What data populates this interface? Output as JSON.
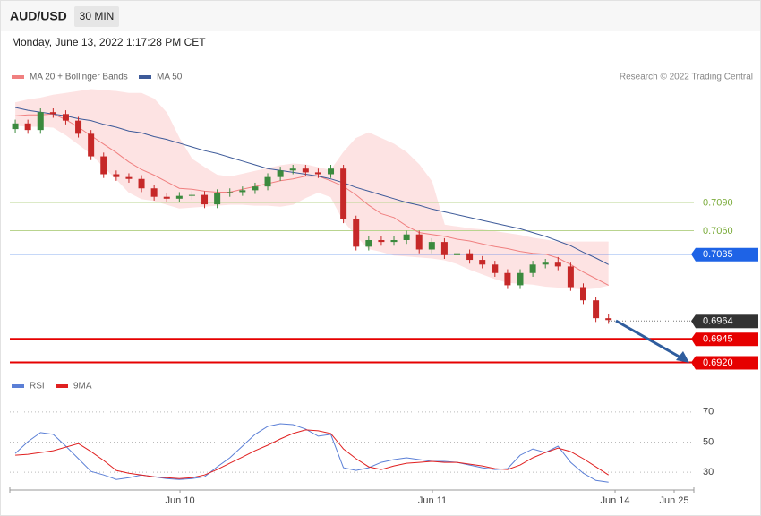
{
  "header": {
    "symbol": "AUD/USD",
    "interval": "30 MIN",
    "timestamp": "Monday, June 13, 2022 1:17:28 PM CET"
  },
  "credit": "Research © 2022 Trading Central",
  "chart_data": [
    {
      "type": "candlestick",
      "xlim": [
        -0.43,
        53.76
      ],
      "ylim": [
        0.691,
        0.721
      ],
      "up_color": "#3b8a3e",
      "down_color": "#c62828",
      "candles": {
        "open": [
          0.7168,
          0.7174,
          0.7167,
          0.7186,
          0.7184,
          0.7177,
          0.7163,
          0.7139,
          0.712,
          0.7117,
          0.7115,
          0.7105,
          0.7096,
          0.7094,
          0.7097,
          0.7098,
          0.7088,
          0.71,
          0.7101,
          0.7103,
          0.7107,
          0.7117,
          0.7124,
          0.7126,
          0.7122,
          0.712,
          0.7126,
          0.7072,
          0.7043,
          0.705,
          0.7048,
          0.705,
          0.7056,
          0.704,
          0.7048,
          0.7034,
          0.7036,
          0.7029,
          0.7024,
          0.7015,
          0.7002,
          0.7015,
          0.7024,
          0.7026,
          0.7022,
          0.7,
          0.6986,
          0.6967
        ],
        "high": [
          0.7178,
          0.7178,
          0.719,
          0.719,
          0.7188,
          0.7181,
          0.7167,
          0.7143,
          0.7124,
          0.7121,
          0.7119,
          0.7109,
          0.71,
          0.7101,
          0.7102,
          0.7102,
          0.7104,
          0.7105,
          0.7107,
          0.7111,
          0.7121,
          0.7128,
          0.713,
          0.713,
          0.7126,
          0.713,
          0.713,
          0.7076,
          0.7054,
          0.7054,
          0.7054,
          0.706,
          0.706,
          0.7052,
          0.7052,
          0.7053,
          0.704,
          0.7033,
          0.7028,
          0.7019,
          0.7019,
          0.7028,
          0.703,
          0.7032,
          0.7026,
          0.7004,
          0.699,
          0.6971
        ],
        "low": [
          0.7164,
          0.7163,
          0.7163,
          0.718,
          0.7173,
          0.7159,
          0.7135,
          0.7116,
          0.7113,
          0.7111,
          0.7101,
          0.7092,
          0.709,
          0.709,
          0.7093,
          0.7084,
          0.7084,
          0.7096,
          0.7097,
          0.7099,
          0.7103,
          0.7113,
          0.712,
          0.7118,
          0.7116,
          0.7116,
          0.7068,
          0.7039,
          0.7039,
          0.7044,
          0.7044,
          0.7046,
          0.7036,
          0.7036,
          0.703,
          0.703,
          0.7025,
          0.702,
          0.7011,
          0.6998,
          0.6998,
          0.7011,
          0.702,
          0.7018,
          0.6996,
          0.6982,
          0.6963,
          0.6961
        ],
        "close": [
          0.7174,
          0.7167,
          0.7186,
          0.7184,
          0.7177,
          0.7163,
          0.7139,
          0.712,
          0.7117,
          0.7115,
          0.7105,
          0.7096,
          0.7094,
          0.7097,
          0.7098,
          0.7088,
          0.71,
          0.7101,
          0.7103,
          0.7107,
          0.7117,
          0.7124,
          0.7126,
          0.7122,
          0.712,
          0.7126,
          0.7072,
          0.7043,
          0.705,
          0.7048,
          0.705,
          0.7056,
          0.704,
          0.7048,
          0.7034,
          0.7036,
          0.7029,
          0.7024,
          0.7015,
          0.7002,
          0.7015,
          0.7024,
          0.7026,
          0.7022,
          0.7,
          0.6986,
          0.6967,
          0.6965
        ]
      },
      "bands": {
        "color": "#fde3e3",
        "upper": [
          0.7196,
          0.7199,
          0.7201,
          0.7204,
          0.7206,
          0.7208,
          0.721,
          0.7209,
          0.7208,
          0.7206,
          0.7206,
          0.72,
          0.7185,
          0.7158,
          0.7136,
          0.7127,
          0.7119,
          0.7117,
          0.712,
          0.7123,
          0.7126,
          0.7129,
          0.7131,
          0.713,
          0.7127,
          0.7124,
          0.7143,
          0.7158,
          0.7164,
          0.7158,
          0.7152,
          0.7143,
          0.713,
          0.7112,
          0.7066,
          0.7064,
          0.7062,
          0.7061,
          0.7059,
          0.7057,
          0.7055,
          0.7052,
          0.705,
          0.7048,
          0.7048,
          0.7048,
          0.7048,
          0.7048
        ],
        "lower": [
          0.7172,
          0.7171,
          0.7171,
          0.717,
          0.7162,
          0.7152,
          0.7142,
          0.7128,
          0.7115,
          0.7101,
          0.7094,
          0.7092,
          0.7088,
          0.7084,
          0.7085,
          0.7086,
          0.7087,
          0.7088,
          0.7088,
          0.7087,
          0.7087,
          0.7086,
          0.7088,
          0.7095,
          0.7101,
          0.7096,
          0.7071,
          0.7055,
          0.7041,
          0.7038,
          0.7034,
          0.7033,
          0.7032,
          0.7031,
          0.7029,
          0.7025,
          0.7019,
          0.7014,
          0.7009,
          0.7005,
          0.7004,
          0.7003,
          0.7001,
          0.7,
          0.6999,
          0.6998,
          0.6999,
          0.7002
        ]
      },
      "series": [
        {
          "name": "MA 20 + Bollinger Bands",
          "color": "#f08080",
          "values": [
            0.7182,
            0.7183,
            0.7183,
            0.7184,
            0.7178,
            0.717,
            0.7161,
            0.7152,
            0.7143,
            0.7133,
            0.7125,
            0.7119,
            0.7112,
            0.7105,
            0.7104,
            0.7102,
            0.7101,
            0.7101,
            0.7104,
            0.7107,
            0.711,
            0.7113,
            0.7115,
            0.7118,
            0.7118,
            0.7113,
            0.7107,
            0.7098,
            0.7087,
            0.7078,
            0.7074,
            0.7065,
            0.7058,
            0.7056,
            0.7054,
            0.7051,
            0.7049,
            0.7046,
            0.7043,
            0.7041,
            0.7038,
            0.7036,
            0.7035,
            0.7031,
            0.7024,
            0.7016,
            0.7009,
            0.7002
          ]
        },
        {
          "name": "MA 50",
          "color": "#3d5a99",
          "values": [
            0.7191,
            0.7188,
            0.7186,
            0.7184,
            0.7182,
            0.7179,
            0.7177,
            0.7173,
            0.717,
            0.7166,
            0.7164,
            0.716,
            0.7157,
            0.7153,
            0.7149,
            0.7145,
            0.7142,
            0.7138,
            0.7134,
            0.713,
            0.7126,
            0.7124,
            0.7122,
            0.712,
            0.7118,
            0.7115,
            0.7111,
            0.7106,
            0.7102,
            0.7098,
            0.7094,
            0.709,
            0.7087,
            0.7083,
            0.708,
            0.7077,
            0.7074,
            0.7071,
            0.7068,
            0.7065,
            0.7062,
            0.7058,
            0.7054,
            0.7049,
            0.7044,
            0.7037,
            0.7031,
            0.7024
          ]
        }
      ],
      "levels": [
        {
          "value": 0.709,
          "label": "0.7090",
          "color": "#7aab3a",
          "line": "thin",
          "box": false
        },
        {
          "value": 0.706,
          "label": "0.7060",
          "color": "#7aab3a",
          "line": "thin",
          "box": false
        },
        {
          "value": 0.7035,
          "label": "0.7035",
          "color": "#1e63e6",
          "line": "solid",
          "box": true
        },
        {
          "value": 0.6964,
          "label": "0.6964",
          "color": "#333333",
          "line": "dotted",
          "box": true
        },
        {
          "value": 0.6945,
          "label": "0.6945",
          "color": "#e60000",
          "line": "thick",
          "box": true
        },
        {
          "value": 0.692,
          "label": "0.6920",
          "color": "#e60000",
          "line": "thick",
          "box": true
        }
      ]
    },
    {
      "type": "line",
      "xlim": [
        -0.43,
        53.76
      ],
      "xticks": [
        {
          "value": 13.05,
          "label": "Jun 10"
        },
        {
          "value": 33.05,
          "label": "Jun 11"
        },
        {
          "value": 47.52,
          "label": "Jun 14"
        },
        {
          "value": 52.2,
          "label": "Jun 25"
        }
      ],
      "ylim": [
        20,
        80
      ],
      "yticks": [
        30,
        50,
        70
      ],
      "series": [
        {
          "name": "RSI",
          "color": "#5b7fd6",
          "values": [
            42.5,
            50.3,
            56.3,
            55.1,
            47.3,
            39.0,
            30.6,
            28.2,
            25.2,
            26.4,
            28.2,
            27.0,
            25.8,
            25.2,
            25.8,
            27.0,
            33.6,
            39.6,
            47.3,
            55.1,
            60.4,
            62.2,
            61.6,
            58.7,
            53.9,
            55.1,
            33.0,
            31.2,
            33.0,
            36.6,
            38.4,
            39.6,
            38.4,
            37.2,
            37.2,
            36.6,
            34.8,
            33.0,
            31.8,
            32.4,
            41.3,
            45.5,
            43.1,
            47.3,
            36.6,
            29.4,
            24.6,
            23.4
          ]
        },
        {
          "name": "9MA",
          "color": "#e02020",
          "values": [
            41.3,
            41.9,
            43.1,
            44.3,
            46.7,
            49.0,
            43.7,
            37.8,
            31.2,
            29.4,
            28.2,
            27.0,
            26.4,
            25.8,
            26.4,
            28.2,
            31.8,
            36.0,
            40.1,
            44.3,
            47.9,
            52.1,
            55.7,
            58.1,
            57.5,
            55.7,
            45.5,
            39.0,
            33.6,
            31.8,
            34.2,
            36.0,
            36.6,
            37.2,
            36.6,
            36.6,
            35.4,
            34.2,
            32.4,
            31.8,
            34.8,
            39.6,
            43.1,
            46.1,
            43.7,
            39.0,
            33.6,
            28.2
          ]
        }
      ]
    }
  ]
}
